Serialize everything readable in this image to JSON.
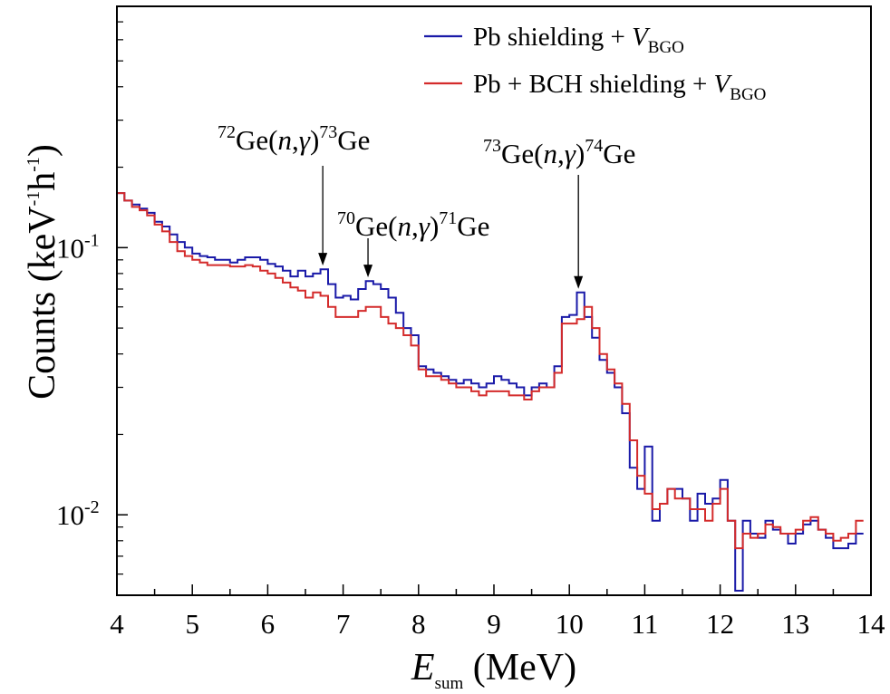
{
  "chart_data": {
    "type": "line",
    "style": "step-histogram",
    "yscale": "log",
    "xlim": [
      4,
      14
    ],
    "ylim": [
      0.005,
      0.8
    ],
    "xticks": [
      4,
      5,
      6,
      7,
      8,
      9,
      10,
      11,
      12,
      13,
      14
    ],
    "xtick_labels": [
      "4",
      "5",
      "6",
      "7",
      "8",
      "9",
      "10",
      "11",
      "12",
      "13",
      "14"
    ],
    "yticks": [
      0.1,
      0.01
    ],
    "ytick_labels": [
      {
        "base": "10",
        "exp": "-1"
      },
      {
        "base": "10",
        "exp": "-2"
      }
    ],
    "xlabel": {
      "symbol": "E",
      "sub": "sum",
      "unit": " (MeV)"
    },
    "ylabel": {
      "part1": "Counts (keV",
      "sup1": "-1",
      "part2": "h",
      "sup2": "-1",
      "part3": ")"
    },
    "legend_position": "top-right",
    "x": [
      4.0,
      4.1,
      4.2,
      4.3,
      4.4,
      4.5,
      4.6,
      4.7,
      4.8,
      4.9,
      5.0,
      5.1,
      5.2,
      5.3,
      5.4,
      5.5,
      5.6,
      5.7,
      5.8,
      5.9,
      6.0,
      6.1,
      6.2,
      6.3,
      6.4,
      6.5,
      6.6,
      6.7,
      6.8,
      6.9,
      7.0,
      7.1,
      7.2,
      7.3,
      7.4,
      7.5,
      7.6,
      7.7,
      7.8,
      7.9,
      8.0,
      8.1,
      8.2,
      8.3,
      8.4,
      8.5,
      8.6,
      8.7,
      8.8,
      8.9,
      9.0,
      9.1,
      9.2,
      9.3,
      9.4,
      9.5,
      9.6,
      9.7,
      9.8,
      9.9,
      10.0,
      10.1,
      10.2,
      10.3,
      10.4,
      10.5,
      10.6,
      10.7,
      10.8,
      10.9,
      11.0,
      11.1,
      11.2,
      11.3,
      11.4,
      11.5,
      11.6,
      11.7,
      11.8,
      11.9,
      12.0,
      12.1,
      12.2,
      12.3,
      12.4,
      12.5,
      12.6,
      12.7,
      12.8,
      12.9,
      13.0,
      13.1,
      13.2,
      13.3,
      13.4,
      13.5,
      13.6,
      13.7,
      13.8
    ],
    "series": [
      {
        "name": "Pb shielding + V_BGO",
        "color": "#1a1aa8",
        "values": [
          0.16,
          0.15,
          0.145,
          0.14,
          0.135,
          0.125,
          0.12,
          0.112,
          0.105,
          0.1,
          0.095,
          0.093,
          0.092,
          0.09,
          0.09,
          0.088,
          0.09,
          0.092,
          0.092,
          0.09,
          0.087,
          0.085,
          0.082,
          0.078,
          0.082,
          0.078,
          0.08,
          0.083,
          0.073,
          0.065,
          0.066,
          0.064,
          0.07,
          0.075,
          0.073,
          0.07,
          0.065,
          0.057,
          0.05,
          0.047,
          0.036,
          0.035,
          0.034,
          0.033,
          0.032,
          0.031,
          0.032,
          0.031,
          0.03,
          0.031,
          0.033,
          0.032,
          0.031,
          0.03,
          0.028,
          0.03,
          0.031,
          0.03,
          0.036,
          0.055,
          0.056,
          0.068,
          0.055,
          0.046,
          0.038,
          0.034,
          0.03,
          0.024,
          0.015,
          0.0125,
          0.018,
          0.0095,
          0.011,
          0.0125,
          0.0125,
          0.0115,
          0.0095,
          0.012,
          0.011,
          0.0115,
          0.0135,
          0.0095,
          0.0052,
          0.0095,
          0.0085,
          0.0082,
          0.0095,
          0.0088,
          0.0085,
          0.0078,
          0.0085,
          0.0092,
          0.0095,
          0.0088,
          0.0082,
          0.0075,
          0.0075,
          0.0078,
          0.0085
        ]
      },
      {
        "name": "Pb + BCH shielding + V_BGO",
        "color": "#d42b2b",
        "values": [
          0.16,
          0.15,
          0.142,
          0.138,
          0.132,
          0.122,
          0.115,
          0.105,
          0.097,
          0.093,
          0.09,
          0.088,
          0.086,
          0.086,
          0.086,
          0.085,
          0.085,
          0.086,
          0.085,
          0.082,
          0.08,
          0.077,
          0.074,
          0.071,
          0.069,
          0.065,
          0.068,
          0.066,
          0.06,
          0.055,
          0.055,
          0.055,
          0.058,
          0.06,
          0.06,
          0.055,
          0.052,
          0.05,
          0.047,
          0.043,
          0.035,
          0.033,
          0.033,
          0.032,
          0.031,
          0.03,
          0.03,
          0.029,
          0.028,
          0.029,
          0.029,
          0.029,
          0.028,
          0.028,
          0.027,
          0.029,
          0.03,
          0.03,
          0.034,
          0.052,
          0.052,
          0.054,
          0.06,
          0.05,
          0.04,
          0.035,
          0.031,
          0.026,
          0.019,
          0.014,
          0.012,
          0.0105,
          0.011,
          0.0125,
          0.0115,
          0.0115,
          0.0105,
          0.0105,
          0.0095,
          0.011,
          0.0125,
          0.0095,
          0.0075,
          0.0085,
          0.0082,
          0.0085,
          0.0092,
          0.009,
          0.0085,
          0.0085,
          0.0088,
          0.0095,
          0.0098,
          0.0088,
          0.0085,
          0.008,
          0.0082,
          0.0085,
          0.0095
        ]
      }
    ],
    "legend": [
      {
        "label": "Pb shielding + ",
        "italic": "V",
        "sub": "BGO",
        "color": "#1a1aa8"
      },
      {
        "label": "Pb + BCH shielding  + ",
        "italic": "V",
        "sub": "BGO",
        "color": "#d42b2b"
      }
    ],
    "annotations": [
      {
        "pre": "72",
        "el": "Ge(",
        "n": "n",
        "comma": ",",
        "gamma": "γ",
        "close": ")",
        "post": "73",
        "el2": "Ge",
        "x": 6.73,
        "y": 0.083
      },
      {
        "pre": "70",
        "el": "Ge(",
        "n": "n",
        "comma": ",",
        "gamma": "γ",
        "close": ")",
        "post": "71",
        "el2": "Ge",
        "x": 7.33,
        "y": 0.075
      },
      {
        "pre": "73",
        "el": "Ge(",
        "n": "n",
        "comma": ",",
        "gamma": "γ",
        "close": ")",
        "post": "74",
        "el2": "Ge",
        "x": 10.12,
        "y": 0.068
      }
    ]
  }
}
